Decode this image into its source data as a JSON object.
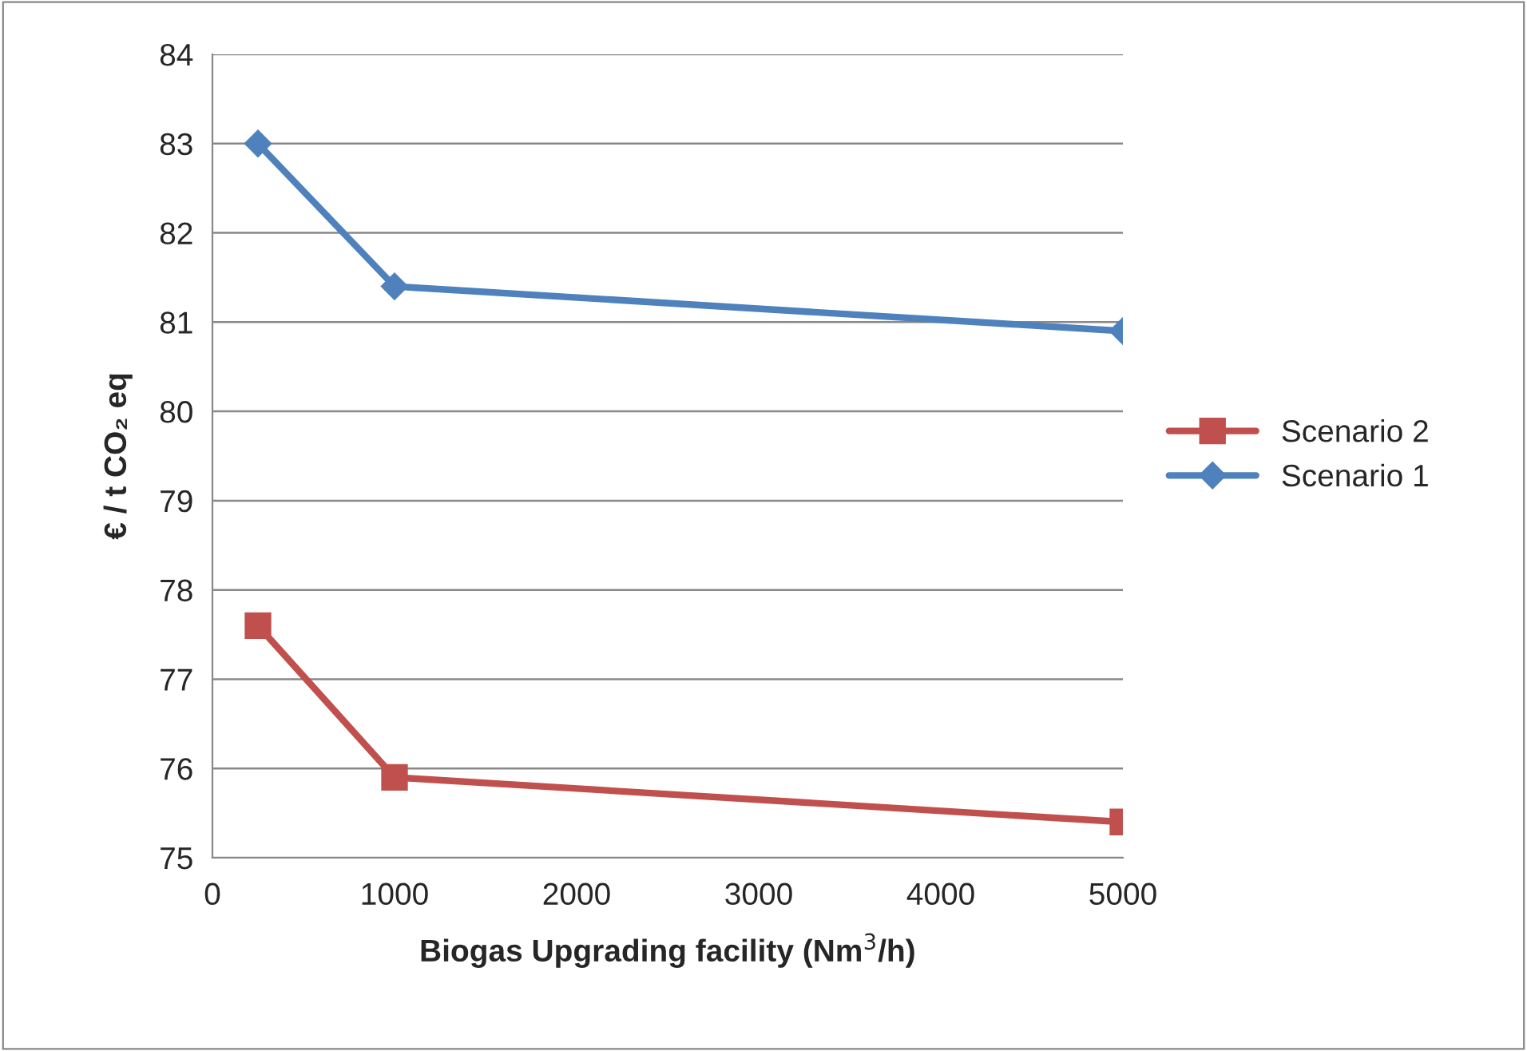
{
  "chart_data": {
    "type": "line",
    "xlabel": "Biogas Upgrading facility (Nm$^{3}$/h)",
    "ylabel": "€ / t CO₂ eq",
    "xlim": [
      0,
      5000
    ],
    "xticks": [
      0,
      1000,
      2000,
      3000,
      4000,
      5000
    ],
    "ylim": [
      75,
      84
    ],
    "yticks": [
      75,
      76,
      77,
      78,
      79,
      80,
      81,
      82,
      83,
      84
    ],
    "grid": "y",
    "legend": "right",
    "series": [
      {
        "name": "Scenario 2",
        "color": "#c0504d",
        "marker": "square",
        "x": [
          250,
          1000,
          5000
        ],
        "values": [
          77.6,
          75.9,
          75.4
        ]
      },
      {
        "name": "Scenario 1",
        "color": "#4f81bd",
        "marker": "diamond",
        "x": [
          250,
          1000,
          5000
        ],
        "values": [
          83.0,
          81.4,
          80.9
        ]
      }
    ]
  }
}
